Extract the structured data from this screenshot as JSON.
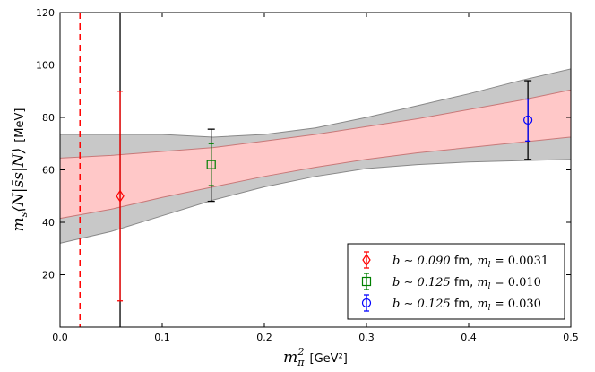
{
  "chart_data": {
    "type": "scatter",
    "xlabel": "m_π^2 [GeV²]",
    "xlabel_symbol": "m",
    "xlabel_sub": "π",
    "xlabel_sup": "2",
    "xlabel_unit": "[GeV²]",
    "ylabel": "m_s⟨N|s̄s|N⟩ [MeV]",
    "ylabel_symbol": "m",
    "ylabel_sub": "s",
    "ylabel_bra": "⟨N|",
    "ylabel_op": "s̄s",
    "ylabel_ket": "|N⟩",
    "ylabel_unit": "[MeV]",
    "xlim": [
      0.0,
      0.5
    ],
    "ylim": [
      0,
      120
    ],
    "xticks": [
      0.0,
      0.1,
      0.2,
      0.3,
      0.4,
      0.5
    ],
    "xtick_labels": [
      "0.0",
      "0.1",
      "0.2",
      "0.3",
      "0.4",
      "0.5"
    ],
    "yticks": [
      20,
      40,
      60,
      80,
      100,
      120
    ],
    "ytick_labels": [
      "20",
      "40",
      "60",
      "80",
      "100",
      "120"
    ],
    "series": [
      {
        "name": "b ∼ 0.090 fm, m_l = 0.0031",
        "legend_b": "b ∼ 0.090 ",
        "legend_unit": "fm",
        "legend_ml": "m",
        "legend_ml_sub": "l",
        "legend_val": " = 0.0031",
        "marker": "diamond",
        "color": "#ff0000",
        "x": 0.0588,
        "y": 50,
        "yerr_low": 10,
        "yerr_high": 90
      },
      {
        "name": "b ∼ 0.125 fm, m_l = 0.010",
        "legend_b": "b ∼ 0.125 ",
        "legend_unit": "fm",
        "legend_ml": "m",
        "legend_ml_sub": "l",
        "legend_val": " = 0.010",
        "marker": "square",
        "color": "#008000",
        "x": 0.148,
        "y": 62,
        "yerr_low": 54,
        "yerr_high": 70
      },
      {
        "name": "b ∼ 0.125 fm, m_l = 0.030",
        "legend_b": "b ∼ 0.125 ",
        "legend_unit": "fm",
        "legend_ml": "m",
        "legend_ml_sub": "l",
        "legend_val": " = 0.030",
        "marker": "circle",
        "color": "#0000ff",
        "x": 0.458,
        "y": 79,
        "yerr_low": 71,
        "yerr_high": 87
      }
    ],
    "total_error_bars": [
      {
        "x": 0.0588,
        "low": 0,
        "high": 120,
        "color": "#000000"
      },
      {
        "x": 0.148,
        "low": 48,
        "high": 75.5,
        "color": "#000000"
      },
      {
        "x": 0.458,
        "low": 64,
        "high": 94,
        "color": "#000000"
      }
    ],
    "physical_point": {
      "x": 0.0195,
      "color": "#ff0000",
      "style": "dashed"
    },
    "bands": {
      "x": [
        0.0,
        0.05,
        0.1,
        0.15,
        0.2,
        0.25,
        0.3,
        0.35,
        0.4,
        0.45,
        0.5
      ],
      "inner_upper": [
        64.5,
        65.5,
        67.0,
        68.5,
        71.0,
        73.5,
        76.5,
        79.5,
        83.0,
        86.5,
        90.5
      ],
      "inner_lower": [
        41.5,
        45.0,
        49.5,
        53.5,
        57.5,
        61.0,
        64.0,
        66.5,
        68.5,
        70.5,
        72.5
      ],
      "outer_upper": [
        73.5,
        73.5,
        73.5,
        72.5,
        73.5,
        76.0,
        80.0,
        84.5,
        89.0,
        94.0,
        98.5
      ],
      "outer_lower": [
        32.0,
        36.5,
        42.5,
        48.5,
        53.5,
        57.5,
        60.5,
        62.0,
        63.0,
        63.5,
        64.0
      ],
      "inner_fill": "#ffc8c8",
      "inner_edge": "#c87878",
      "outer_fill": "#c8c8c8",
      "outer_edge": "#888888"
    },
    "legend_position": "lower-right",
    "grid": false
  }
}
